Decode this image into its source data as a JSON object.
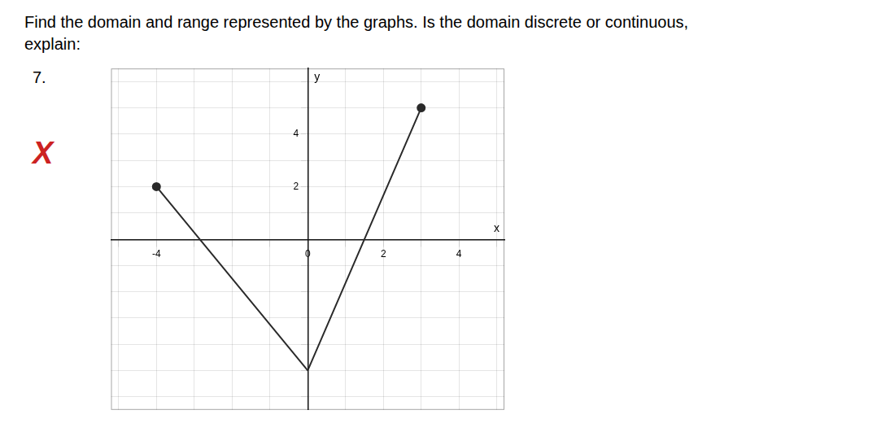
{
  "chart_data": {
    "type": "line",
    "title": [
      "Find the domain and range represented by the graphs. Is the domain discrete or continuous,",
      "explain:"
    ],
    "annotations": [
      {
        "text": "7."
      },
      {
        "text": "X",
        "color": "#cc2222"
      }
    ],
    "xlabel": "x",
    "ylabel": "y",
    "x": [
      -4,
      0,
      3
    ],
    "values": [
      2,
      -5,
      5
    ],
    "color": "#2a2a2a",
    "marker": "endpoints",
    "xlim": [
      -5.2,
      5.2
    ],
    "ylim": [
      -6.5,
      6.5
    ],
    "xticks": [
      {
        "value": -5,
        "label": null
      },
      -4,
      {
        "value": -3,
        "label": null
      },
      {
        "value": -2,
        "label": null
      },
      {
        "value": -1,
        "label": null
      },
      0,
      {
        "value": 1,
        "label": null
      },
      2,
      {
        "value": 3,
        "label": null
      },
      4,
      {
        "value": 5,
        "label": null
      }
    ],
    "yticks": [
      {
        "value": -6,
        "label": null
      },
      {
        "value": -5,
        "label": null
      },
      {
        "value": -4,
        "label": null
      },
      {
        "value": -3,
        "label": null
      },
      {
        "value": -2,
        "label": null
      },
      {
        "value": -1,
        "label": null
      },
      {
        "value": 0,
        "label": null
      },
      {
        "value": 1,
        "label": null
      },
      2,
      {
        "value": 3,
        "label": null
      },
      4,
      {
        "value": 5,
        "label": null
      },
      {
        "value": 6,
        "label": null
      }
    ],
    "grid": true
  }
}
